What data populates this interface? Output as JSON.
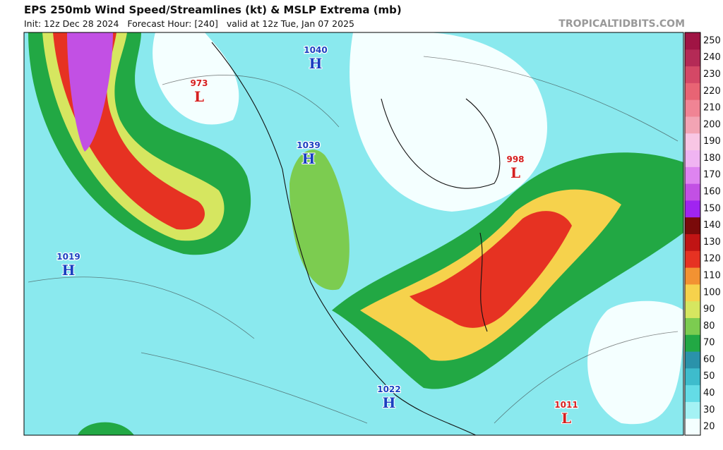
{
  "header": {
    "title": "EPS 250mb Wind Speed/Streamlines (kt) & MSLP Extrema (mb)",
    "subtitle": "Init: 12z Dec 28 2024   Forecast Hour: [240]   valid at 12z Tue, Jan 07 2025",
    "watermark": "TROPICALTIDBITS.COM"
  },
  "centers": [
    {
      "value": "1040",
      "type": "H"
    },
    {
      "value": "973",
      "type": "L"
    },
    {
      "value": "1039",
      "type": "H"
    },
    {
      "value": "998",
      "type": "L"
    },
    {
      "value": "1019",
      "type": "H"
    },
    {
      "value": "1022",
      "type": "H"
    },
    {
      "value": "1011",
      "type": "L"
    }
  ],
  "colorbar": {
    "levels": [
      20,
      30,
      40,
      50,
      60,
      70,
      80,
      90,
      100,
      110,
      120,
      130,
      140,
      150,
      160,
      170,
      180,
      190,
      200,
      210,
      220,
      230,
      240,
      250
    ],
    "colors": [
      "#f4ffff",
      "#a4f2f4",
      "#64dce6",
      "#3ebccc",
      "#2a92aa",
      "#22a844",
      "#7ccc50",
      "#d6e660",
      "#f6d24c",
      "#f29232",
      "#e63222",
      "#c01414",
      "#7a0a0a",
      "#a024f0",
      "#c250e4",
      "#de84f0",
      "#f0b4f2",
      "#f8c6e4",
      "#f2a4b4",
      "#f08494",
      "#e86474",
      "#d44866",
      "#b42a56",
      "#a01444"
    ]
  }
}
